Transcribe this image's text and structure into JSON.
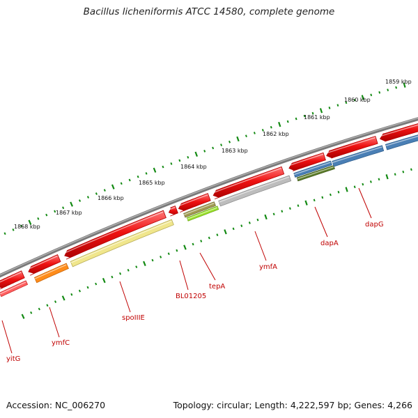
{
  "title": "Bacillus licheniformis ATCC 14580, complete genome",
  "accession": "Accession: NC_006270",
  "topology": "Topology: circular; Length: 4,222,597 bp; Genes: 4,266",
  "kbp_labels": [
    "1868 kbp",
    "1867 kbp",
    "1866 kbp",
    "1865 kbp",
    "1864 kbp",
    "1863 kbp",
    "1862 kbp",
    "1861 kbp",
    "1860 kbp",
    "1859 kbp"
  ],
  "gene_labels": [
    "yitG",
    "ymfC",
    "spoIIIE",
    "BL01205",
    "tepA",
    "ymfA",
    "dapA",
    "dapG"
  ],
  "colors": {
    "backbone": "#787878",
    "cds": "#ee1111",
    "ticks": "#138a13",
    "label": "#c00000",
    "orange": "#ff8c1a",
    "khaki": "#f0e68c",
    "olive": "#a09a50",
    "lime": "#9ae12a",
    "silver": "#bdbdbd",
    "steelblue": "#4a7fb5",
    "darkolive": "#5d7d2a"
  }
}
